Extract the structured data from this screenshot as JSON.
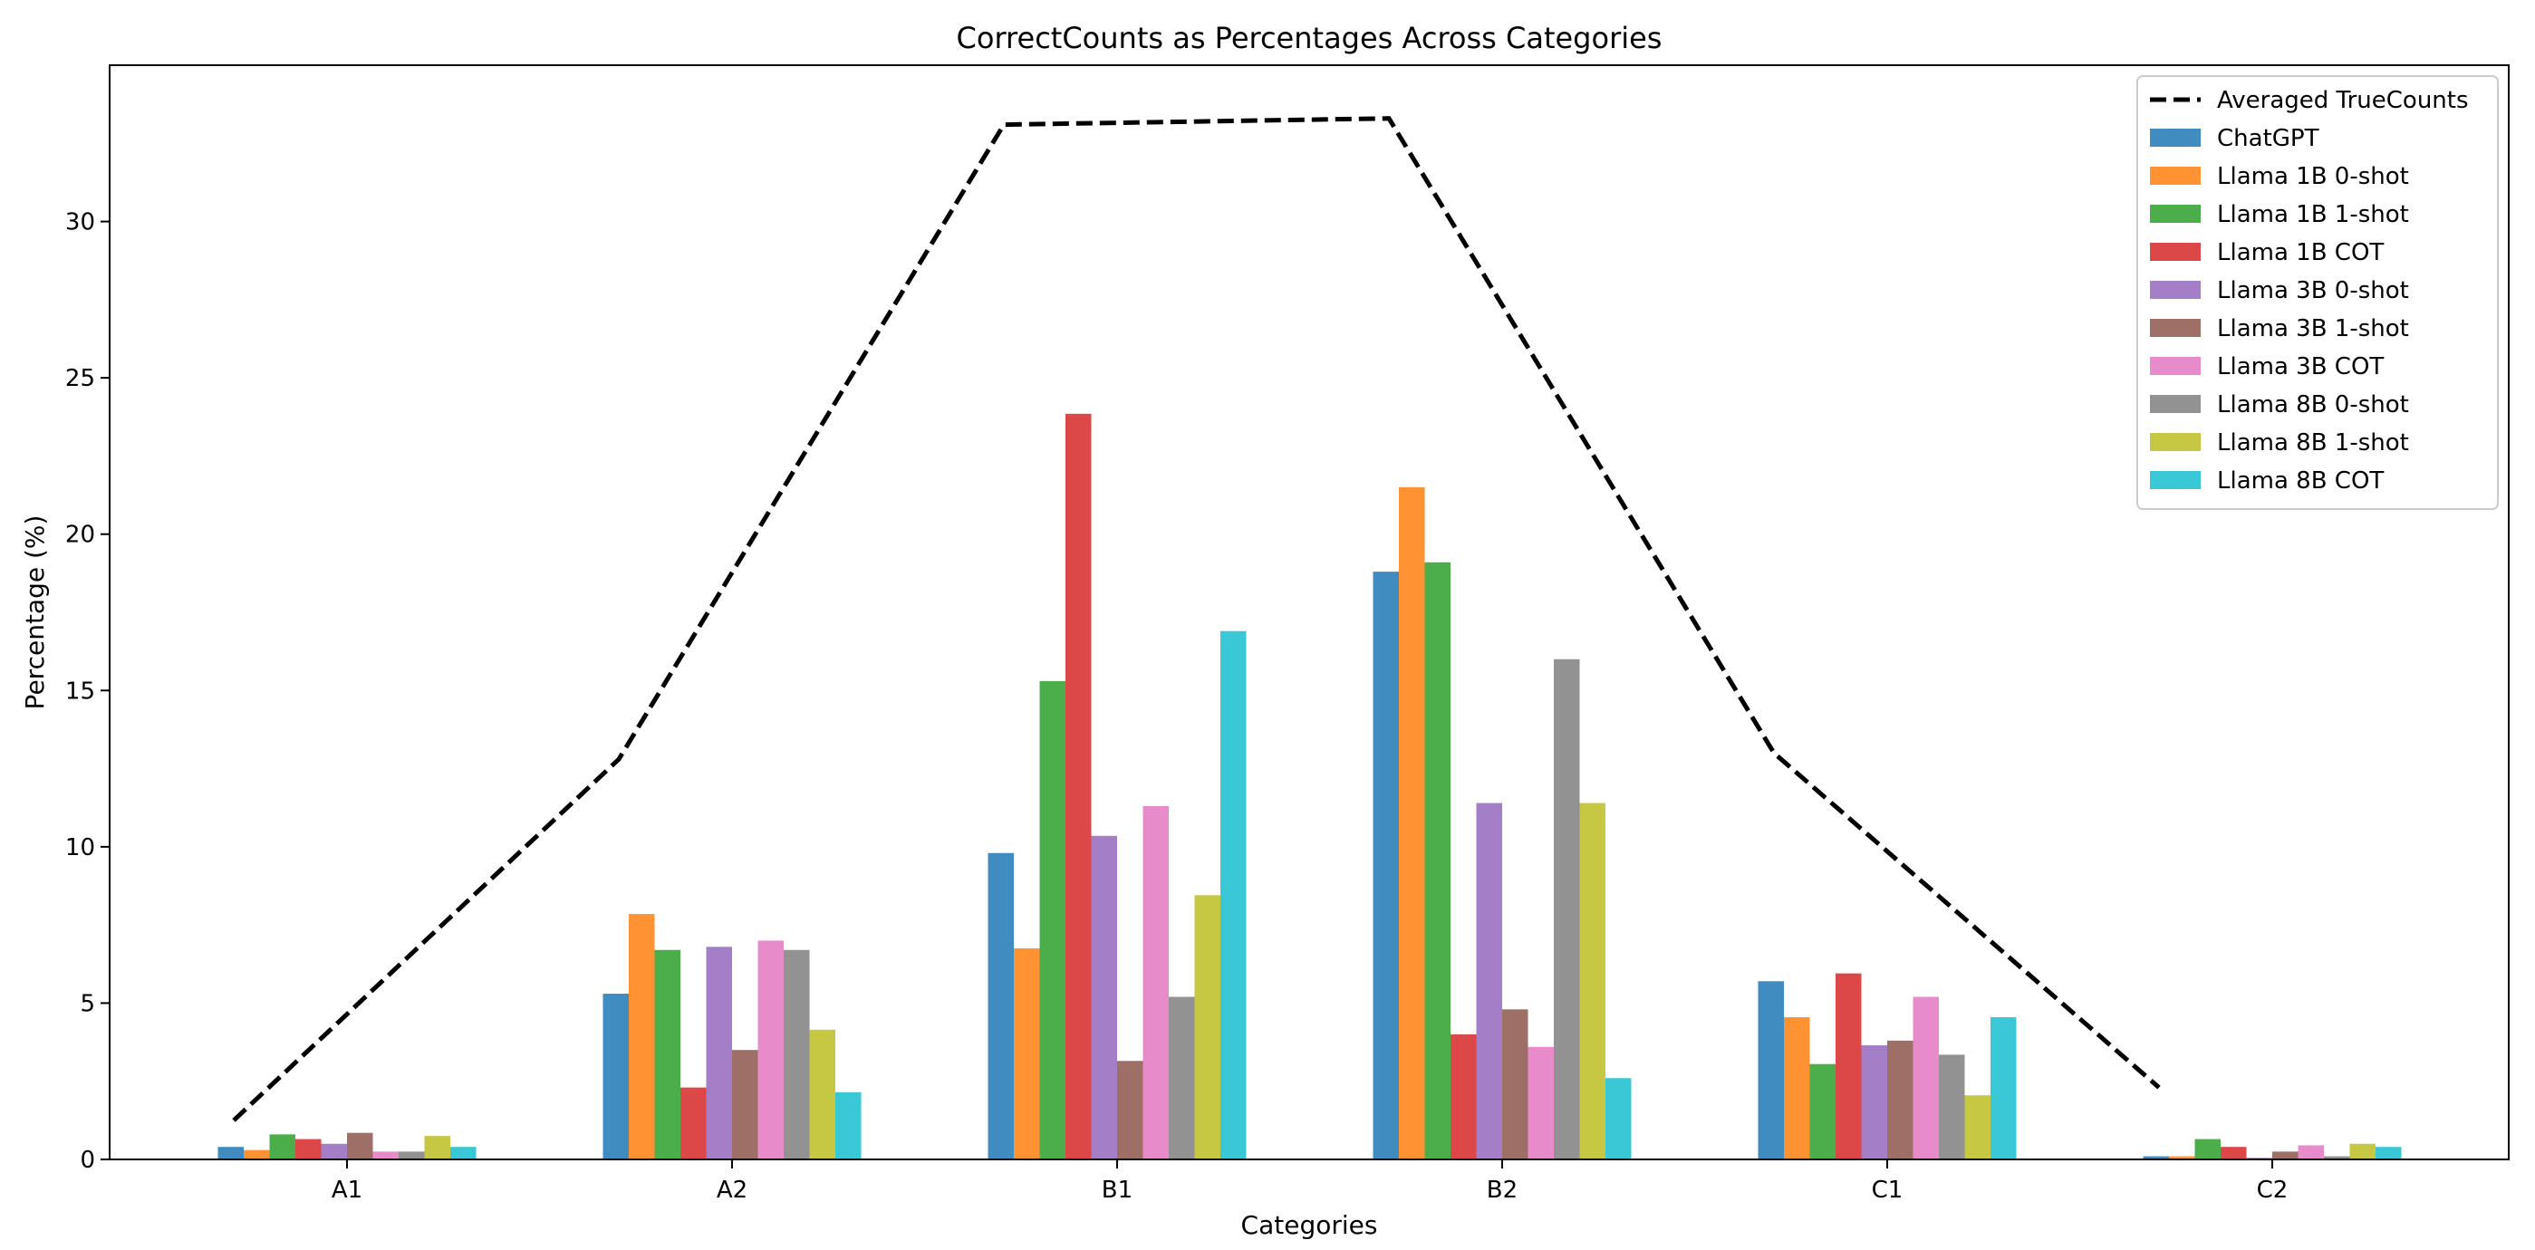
{
  "chart_data": {
    "type": "bar",
    "title": "CorrectCounts as Percentages Across Categories",
    "xlabel": "Categories",
    "ylabel": "Percentage (%)",
    "ylim": [
      0,
      35
    ],
    "yticks": [
      0,
      5,
      10,
      15,
      20,
      25,
      30
    ],
    "categories": [
      "A1",
      "A2",
      "B1",
      "B2",
      "C1",
      "C2"
    ],
    "series": [
      {
        "name": "ChatGPT",
        "color": "#1f77b4",
        "values": [
          0.4,
          5.3,
          9.8,
          18.8,
          5.7,
          0.1
        ]
      },
      {
        "name": "Llama 1B 0-shot",
        "color": "#ff7f0e",
        "values": [
          0.3,
          7.85,
          6.75,
          21.5,
          4.55,
          0.1
        ]
      },
      {
        "name": "Llama 1B 1-shot",
        "color": "#2ca02c",
        "values": [
          0.8,
          6.7,
          15.3,
          19.1,
          3.05,
          0.65
        ]
      },
      {
        "name": "Llama 1B COT",
        "color": "#d62728",
        "values": [
          0.65,
          2.3,
          23.85,
          4.0,
          5.95,
          0.4
        ]
      },
      {
        "name": "Llama 3B 0-shot",
        "color": "#9467bd",
        "values": [
          0.5,
          6.8,
          10.35,
          11.4,
          3.65,
          0.05
        ]
      },
      {
        "name": "Llama 3B 1-shot",
        "color": "#8c564b",
        "values": [
          0.85,
          3.5,
          3.15,
          4.8,
          3.8,
          0.25
        ]
      },
      {
        "name": "Llama 3B COT",
        "color": "#e377c2",
        "values": [
          0.25,
          7.0,
          11.3,
          3.6,
          5.2,
          0.45
        ]
      },
      {
        "name": "Llama 8B 0-shot",
        "color": "#7f7f7f",
        "values": [
          0.25,
          6.7,
          5.2,
          16.0,
          3.35,
          0.1
        ]
      },
      {
        "name": "Llama 8B 1-shot",
        "color": "#bcbd22",
        "values": [
          0.75,
          4.15,
          8.45,
          11.4,
          2.05,
          0.5
        ]
      },
      {
        "name": "Llama 8B COT",
        "color": "#17becf",
        "values": [
          0.4,
          2.15,
          16.9,
          2.6,
          4.55,
          0.4
        ]
      }
    ],
    "line": {
      "name": "Averaged TrueCounts",
      "color": "#000000",
      "style": "dashed",
      "values": [
        1.25,
        12.8,
        33.1,
        33.3,
        13.0,
        2.3
      ]
    },
    "bar_opacity": 0.85,
    "grid": false,
    "legend_position": "top-right"
  }
}
